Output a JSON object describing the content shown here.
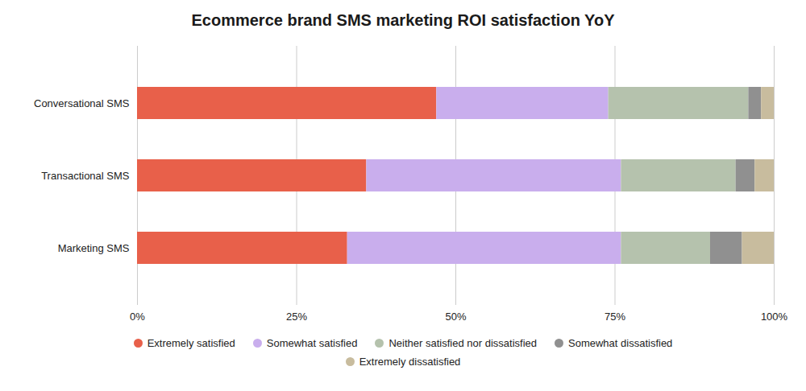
{
  "chart_data": {
    "type": "bar",
    "orientation": "horizontal",
    "stacked": true,
    "title": "Ecommerce brand SMS marketing ROI satisfaction YoY",
    "categories": [
      "Marketing SMS",
      "Transactional SMS",
      "Conversational SMS"
    ],
    "series": [
      {
        "name": "Extremely satisfied",
        "color": "#E8604A",
        "values": [
          33,
          36,
          47
        ]
      },
      {
        "name": "Somewhat satisfied",
        "color": "#C9AEED",
        "values": [
          43,
          40,
          27
        ]
      },
      {
        "name": "Neither satisfied nor dissatisfied",
        "color": "#B5C2AD",
        "values": [
          14,
          18,
          22
        ]
      },
      {
        "name": "Somewhat dissatisfied",
        "color": "#909090",
        "values": [
          5,
          3,
          2
        ]
      },
      {
        "name": "Extremely dissatisfied",
        "color": "#C8BC9E",
        "values": [
          5,
          3,
          2
        ]
      }
    ],
    "xlim": [
      0,
      100
    ],
    "xticks": [
      {
        "value": 0,
        "label": "0%"
      },
      {
        "value": 25,
        "label": "25%"
      },
      {
        "value": 50,
        "label": "50%"
      },
      {
        "value": 75,
        "label": "75%"
      },
      {
        "value": 100,
        "label": "100%"
      }
    ],
    "grid": true,
    "legend": "bottom"
  }
}
